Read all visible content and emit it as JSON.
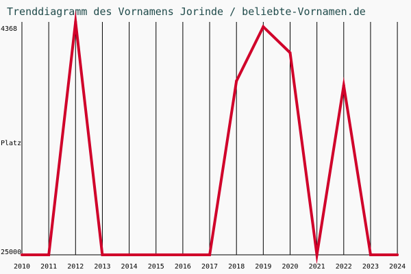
{
  "chart_data": {
    "type": "line",
    "title": "Trenddiagramm des Vornamens Jorinde / beliebte-Vornamen.de",
    "xlabel": "",
    "ylabel": "Platz",
    "y_reversed": true,
    "ylim": [
      25000,
      4368
    ],
    "y_tick_labels": [
      "4368",
      "Platz",
      "25000"
    ],
    "categories": [
      "2010",
      "2011",
      "2012",
      "2013",
      "2014",
      "2015",
      "2016",
      "2017",
      "2018",
      "2019",
      "2020",
      "2021",
      "2022",
      "2023",
      "2024"
    ],
    "series": [
      {
        "values": [
          25000,
          25000,
          4368,
          25000,
          25000,
          25000,
          25000,
          25000,
          9600,
          4800,
          7100,
          25000,
          10000,
          25000,
          25000
        ]
      }
    ],
    "grid": "vertical",
    "line_color": "#d0002a"
  }
}
